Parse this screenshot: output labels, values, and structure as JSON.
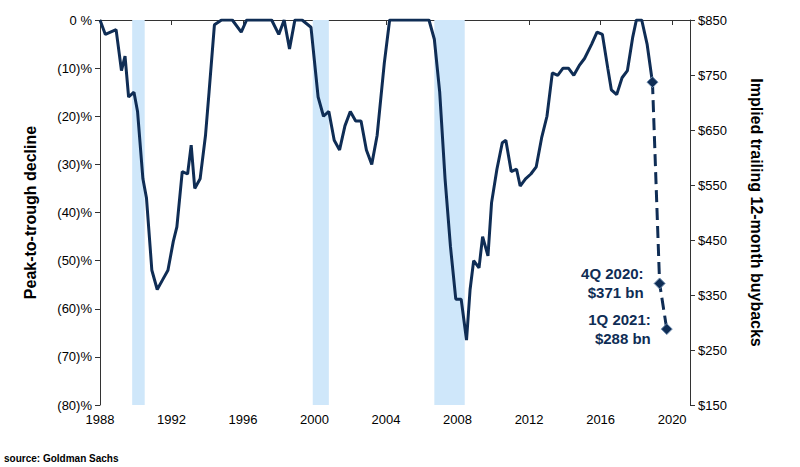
{
  "chart_data": {
    "type": "line",
    "y_label": "Peak-to-trough decline",
    "y2_label": "Implied trailing 12-month buybacks",
    "source": "source: Goldman Sachs",
    "grid": false,
    "xlim": [
      1988,
      2021
    ],
    "xticks": [
      1988,
      1992,
      1996,
      2000,
      2004,
      2008,
      2012,
      2016,
      2020
    ],
    "ylim": [
      -80,
      0
    ],
    "yticks": [
      {
        "value": -80,
        "label": "(80)%"
      },
      {
        "value": -70,
        "label": "(70)%"
      },
      {
        "value": -60,
        "label": "(60)%"
      },
      {
        "value": -50,
        "label": "(50)%"
      },
      {
        "value": -40,
        "label": "(40)%"
      },
      {
        "value": -30,
        "label": "(30)%"
      },
      {
        "value": -20,
        "label": "(20)%"
      },
      {
        "value": -10,
        "label": "(10)%"
      },
      {
        "value": 0,
        "label": "0 %"
      }
    ],
    "y2lim": [
      150,
      850
    ],
    "y2ticks": [
      {
        "value": 150,
        "label": "$150"
      },
      {
        "value": 250,
        "label": "$250"
      },
      {
        "value": 350,
        "label": "$350"
      },
      {
        "value": 450,
        "label": "$450"
      },
      {
        "value": 550,
        "label": "$550"
      },
      {
        "value": 650,
        "label": "$650"
      },
      {
        "value": 750,
        "label": "$750"
      },
      {
        "value": 850,
        "label": "$850"
      }
    ],
    "shaded_ranges": [
      [
        1989.8,
        1990.5
      ],
      [
        1999.9,
        2000.8
      ],
      [
        2006.7,
        2008.4
      ]
    ],
    "shade_color": "#cfe7fa",
    "series": [
      {
        "color": "#0f2d55",
        "line_style": "solid",
        "marker": "none",
        "x": [
          1988.0,
          1988.3,
          1988.9,
          1989.2,
          1989.4,
          1989.6,
          1989.9,
          1990.1,
          1990.4,
          1990.6,
          1990.9,
          1991.2,
          1991.5,
          1991.8,
          1992.1,
          1992.3,
          1992.6,
          1992.9,
          1993.1,
          1993.3,
          1993.6,
          1993.9,
          1994.1,
          1994.4,
          1994.8,
          1995.4,
          1995.9,
          1996.2,
          1997.6,
          1998.0,
          1998.3,
          1998.6,
          1998.9,
          1999.3,
          1999.8,
          2000.2,
          2000.5,
          2000.8,
          2001.1,
          2001.4,
          2001.7,
          2002.0,
          2002.3,
          2002.6,
          2002.9,
          2003.2,
          2003.5,
          2003.9,
          2004.2,
          2006.4,
          2006.7,
          2007.0,
          2007.3,
          2007.6,
          2007.9,
          2008.2,
          2008.5,
          2008.7,
          2008.9,
          2009.2,
          2009.4,
          2009.7,
          2009.9,
          2010.2,
          2010.5,
          2010.7,
          2011.0,
          2011.3,
          2011.5,
          2011.8,
          2012.1,
          2012.4,
          2012.7,
          2013.0,
          2013.3,
          2013.6,
          2013.9,
          2014.2,
          2014.5,
          2014.8,
          2015.1,
          2015.5,
          2015.8,
          2016.1,
          2016.4,
          2016.6,
          2016.9,
          2017.2,
          2017.5,
          2017.8,
          2018.0,
          2018.3,
          2018.6,
          2018.9
        ],
        "values": [
          0,
          -3,
          -2,
          -10.5,
          -7.5,
          -16,
          -15,
          -19,
          -33,
          -37,
          -52,
          -56,
          -54,
          -52,
          -46,
          -43,
          -31.5,
          -32,
          -26,
          -35,
          -33,
          -24,
          -15,
          -1,
          0,
          0,
          -2.5,
          0,
          0,
          -3,
          0,
          -6,
          0,
          0,
          -1.5,
          -16,
          -20,
          -19,
          -25,
          -27,
          -22,
          -19,
          -21,
          -21,
          -27,
          -30,
          -24,
          -9,
          0,
          0,
          -4,
          -15,
          -33,
          -47,
          -58,
          -58,
          -66.5,
          -56,
          -50,
          -51.5,
          -45,
          -49,
          -38,
          -31,
          -25.5,
          -25,
          -31.5,
          -31,
          -34.5,
          -33,
          -32,
          -30.5,
          -24.5,
          -20,
          -11,
          -11.5,
          -10,
          -10,
          -11.5,
          -9.5,
          -8,
          -5,
          -2.5,
          -3,
          -10,
          -14.5,
          -15.5,
          -12,
          -10.5,
          -3.5,
          0,
          0,
          -5,
          -13
        ]
      },
      {
        "axis": "y2",
        "color": "#0f2d55",
        "line_style": "dashed",
        "marker": "diamond",
        "x": [
          2018.9,
          2019.3,
          2019.7
        ],
        "values": [
          737,
          371,
          288
        ],
        "labels": [
          null,
          "4Q 2020:\n$371 bn",
          "1Q 2021:\n$288 bn"
        ]
      }
    ]
  }
}
